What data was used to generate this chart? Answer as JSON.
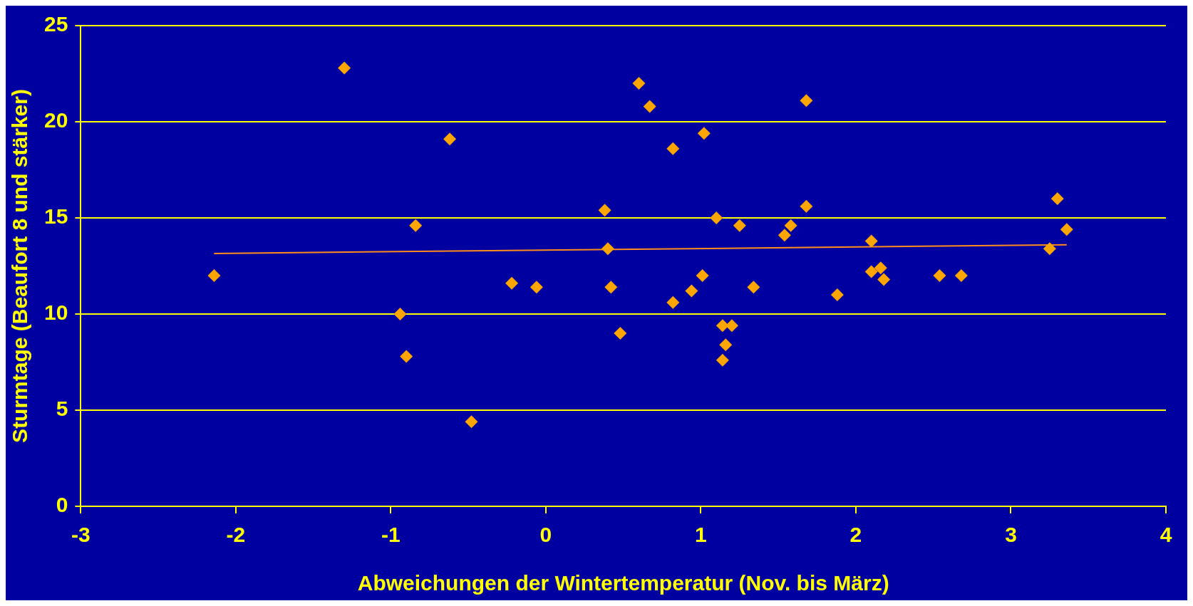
{
  "chart_data": {
    "type": "scatter",
    "xlabel": "Abweichungen der Wintertemperatur (Nov. bis März)",
    "ylabel": "Sturmtage (Beaufort 8 und stärker)",
    "xlim": [
      -3,
      4
    ],
    "xticks": [
      -3,
      -2,
      -1,
      0,
      1,
      2,
      3,
      4
    ],
    "ylim": [
      0,
      25
    ],
    "yticks": [
      0,
      5,
      10,
      15,
      20,
      25
    ],
    "grid": "y",
    "legend": false,
    "series": [
      {
        "marker": "diamond",
        "color": "#ffa500",
        "x": [
          -2.14,
          -1.3,
          -0.94,
          -0.9,
          -0.84,
          -0.62,
          -0.48,
          -0.22,
          -0.06,
          0.38,
          0.4,
          0.42,
          0.48,
          0.6,
          0.67,
          0.82,
          0.82,
          0.94,
          1.01,
          1.02,
          1.1,
          1.14,
          1.2,
          1.16,
          1.14,
          1.25,
          1.34,
          1.54,
          1.58,
          1.68,
          1.68,
          1.88,
          2.1,
          2.1,
          2.16,
          2.18,
          2.54,
          2.68,
          3.25,
          3.3,
          3.36
        ],
        "values": [
          12.0,
          22.8,
          10.0,
          7.8,
          14.6,
          19.1,
          4.4,
          11.6,
          11.4,
          15.4,
          13.4,
          11.4,
          9.0,
          22.0,
          20.8,
          18.6,
          10.6,
          11.2,
          12.0,
          19.4,
          15.0,
          9.4,
          9.4,
          8.4,
          7.6,
          14.6,
          11.4,
          14.1,
          14.6,
          21.1,
          15.6,
          11.0,
          13.8,
          12.2,
          12.4,
          11.8,
          12.0,
          12.0,
          13.4,
          16.0,
          14.4
        ]
      },
      {
        "type": "line",
        "marker": "none",
        "color": "#ff8c1a",
        "x": [
          -2.14,
          3.36
        ],
        "values": [
          13.15,
          13.6
        ]
      }
    ]
  }
}
